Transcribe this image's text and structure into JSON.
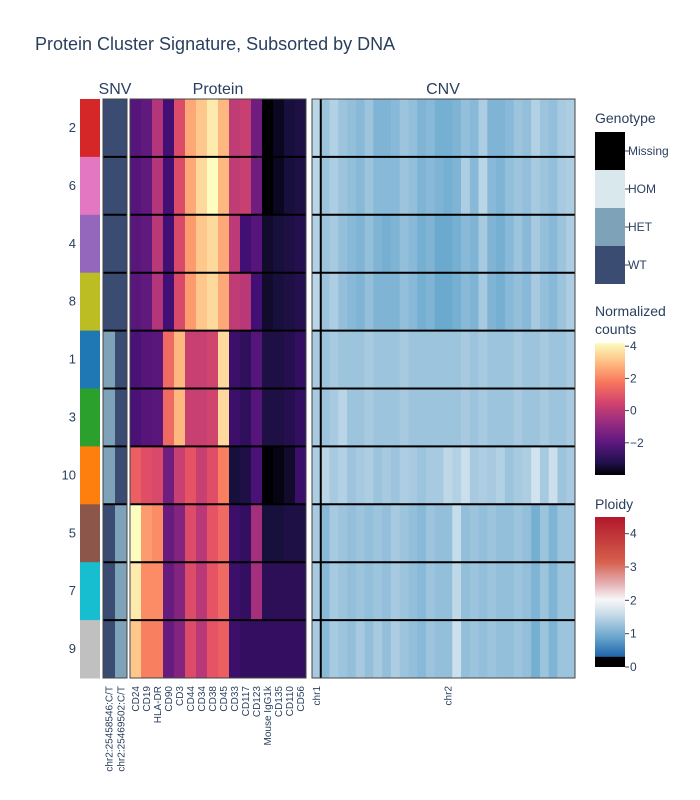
{
  "chart_data": {
    "type": "heatmap",
    "title": "Protein Cluster Signature, Subsorted by DNA",
    "panel_titles": [
      "SNV",
      "Protein",
      "CNV"
    ],
    "clusters": [
      "2",
      "6",
      "4",
      "8",
      "1",
      "3",
      "10",
      "5",
      "7",
      "9"
    ],
    "cluster_colors": [
      "#d62728",
      "#e377c2",
      "#9467bd",
      "#bcbd22",
      "#1f77b4",
      "#2ca02c",
      "#ff7f0e",
      "#8c564b",
      "#17becf",
      "#c0c0c0"
    ],
    "snv": {
      "variants": [
        "chr2:25458546:C/T",
        "chr2:25469502:C/T"
      ],
      "genotype_codes": {
        "WT": 0,
        "HET": 1,
        "HOM": 2,
        "Missing": 3
      },
      "values": [
        [
          0,
          0
        ],
        [
          0,
          0
        ],
        [
          0,
          0
        ],
        [
          0,
          0
        ],
        [
          1,
          0
        ],
        [
          1,
          0
        ],
        [
          1,
          0
        ],
        [
          0,
          1
        ],
        [
          0,
          1
        ],
        [
          0,
          1
        ]
      ]
    },
    "protein": {
      "markers": [
        "CD24",
        "CD19",
        "HLA-DR",
        "CD90",
        "CD3",
        "CD44",
        "CD34",
        "CD38",
        "CD45",
        "CD33",
        "CD117",
        "CD123",
        "Mouse IgG1k",
        "CD135",
        "CD110",
        "CD56"
      ],
      "values": [
        [
          -1.5,
          -1.2,
          0.5,
          -2.0,
          1.5,
          3.2,
          3.6,
          4.0,
          3.4,
          0.8,
          1.0,
          -0.8,
          -4.0,
          -3.6,
          -3.2,
          -3.0
        ],
        [
          -1.5,
          -1.2,
          0.5,
          -2.0,
          1.5,
          3.2,
          3.8,
          4.2,
          3.4,
          0.8,
          1.0,
          -0.8,
          -4.0,
          -3.6,
          -3.2,
          -3.0
        ],
        [
          -1.4,
          -1.2,
          0.6,
          -2.0,
          1.4,
          3.0,
          3.6,
          3.8,
          3.2,
          0.7,
          -2.0,
          -1.5,
          -3.4,
          -3.2,
          -3.0,
          -2.8
        ],
        [
          -1.4,
          -1.2,
          0.5,
          -2.0,
          1.4,
          3.0,
          3.6,
          3.8,
          3.2,
          0.8,
          0.6,
          -2.0,
          -3.4,
          -3.2,
          -3.0,
          -2.8
        ],
        [
          -1.8,
          -1.5,
          -1.4,
          2.2,
          3.4,
          1.0,
          1.0,
          1.2,
          3.8,
          -2.2,
          -2.5,
          -1.5,
          -3.0,
          -3.0,
          -2.8,
          -2.4
        ],
        [
          -1.8,
          -1.5,
          -1.4,
          2.2,
          3.4,
          1.0,
          1.0,
          1.2,
          3.8,
          -2.2,
          -2.5,
          -1.5,
          -3.0,
          -3.0,
          -2.8,
          -2.4
        ],
        [
          2.0,
          1.6,
          1.4,
          -0.8,
          1.0,
          1.8,
          1.0,
          1.6,
          2.6,
          -3.2,
          -3.0,
          -1.8,
          -4.2,
          -3.8,
          -3.4,
          -2.2
        ],
        [
          4.2,
          3.0,
          2.8,
          -1.0,
          -0.4,
          1.5,
          0.6,
          1.8,
          2.2,
          -2.2,
          -2.4,
          0.2,
          -3.2,
          -3.2,
          -3.0,
          -3.0
        ],
        [
          4.0,
          2.8,
          2.8,
          -1.0,
          -0.4,
          1.5,
          0.6,
          1.8,
          2.2,
          -2.2,
          -2.4,
          0.2,
          -2.6,
          -2.6,
          -2.6,
          -2.6
        ],
        [
          3.6,
          2.6,
          2.6,
          -1.0,
          -0.4,
          1.5,
          0.6,
          1.8,
          2.0,
          -2.2,
          -2.4,
          -2.4,
          -2.4,
          -2.4,
          -2.4,
          -2.4
        ]
      ]
    },
    "cnv": {
      "amplicons": 30,
      "tick_labels": [
        {
          "label": "chr1",
          "col": 0
        },
        {
          "label": "chr2",
          "col": 15
        }
      ],
      "chr_boundary_after_col": 0,
      "values": [
        [
          2.3,
          1.9,
          2.2,
          1.9,
          1.8,
          1.7,
          1.9,
          1.6,
          1.6,
          1.7,
          1.9,
          1.8,
          1.6,
          1.7,
          1.5,
          1.5,
          1.6,
          1.8,
          1.7,
          2.1,
          1.6,
          1.6,
          1.7,
          1.9,
          1.8,
          2.2,
          1.9,
          1.8,
          2.0,
          2.1
        ],
        [
          2.3,
          1.9,
          2.1,
          1.9,
          1.8,
          1.7,
          1.9,
          1.7,
          1.7,
          1.7,
          1.9,
          1.8,
          1.6,
          1.7,
          1.6,
          1.5,
          1.6,
          2.1,
          1.7,
          2.3,
          1.7,
          1.6,
          1.8,
          1.9,
          1.8,
          2.0,
          1.9,
          1.8,
          2.0,
          2.1
        ],
        [
          2.2,
          1.9,
          2.0,
          1.8,
          1.7,
          1.6,
          1.8,
          1.6,
          1.5,
          1.6,
          1.8,
          1.7,
          1.5,
          1.6,
          1.4,
          1.4,
          1.5,
          1.7,
          1.6,
          2.0,
          1.6,
          1.5,
          1.7,
          1.9,
          1.7,
          2.0,
          1.8,
          1.7,
          1.9,
          2.1
        ],
        [
          2.3,
          1.9,
          2.1,
          1.8,
          1.7,
          1.6,
          1.8,
          1.6,
          1.6,
          1.6,
          1.8,
          1.7,
          1.5,
          1.6,
          1.4,
          1.4,
          1.5,
          1.7,
          1.6,
          2.0,
          1.6,
          1.5,
          1.7,
          1.8,
          1.7,
          2.0,
          1.8,
          1.7,
          1.9,
          2.1
        ],
        [
          2.0,
          1.9,
          2.0,
          1.9,
          1.9,
          1.9,
          2.0,
          1.9,
          1.9,
          1.9,
          2.0,
          1.9,
          1.9,
          1.9,
          1.9,
          1.9,
          1.9,
          2.0,
          1.9,
          2.0,
          1.9,
          1.9,
          1.9,
          2.0,
          1.9,
          1.9,
          2.0,
          1.9,
          1.9,
          2.0
        ],
        [
          2.0,
          1.9,
          2.0,
          2.3,
          1.9,
          1.9,
          2.0,
          1.9,
          1.9,
          1.9,
          2.0,
          1.9,
          1.9,
          1.9,
          1.9,
          1.9,
          1.9,
          2.0,
          1.9,
          2.0,
          1.9,
          1.9,
          1.9,
          2.0,
          1.9,
          1.9,
          2.0,
          1.9,
          1.9,
          2.0
        ],
        [
          2.1,
          2.3,
          2.0,
          2.2,
          1.9,
          2.0,
          2.1,
          1.9,
          2.0,
          1.9,
          2.1,
          2.0,
          1.9,
          2.0,
          2.0,
          2.4,
          2.2,
          2.6,
          2.0,
          2.1,
          2.0,
          2.2,
          1.9,
          2.0,
          2.1,
          2.7,
          2.0,
          2.6,
          1.9,
          2.0
        ],
        [
          2.0,
          1.7,
          2.0,
          1.9,
          1.8,
          1.9,
          1.8,
          1.9,
          1.8,
          2.0,
          1.9,
          1.8,
          1.7,
          1.9,
          1.8,
          1.8,
          2.5,
          1.8,
          1.9,
          1.8,
          1.9,
          1.8,
          1.8,
          1.9,
          1.8,
          1.5,
          1.9,
          1.6,
          1.9,
          1.9
        ],
        [
          2.0,
          1.7,
          2.0,
          1.9,
          1.8,
          1.9,
          1.8,
          1.9,
          1.8,
          2.0,
          1.9,
          1.8,
          1.7,
          1.9,
          1.8,
          1.8,
          2.4,
          1.8,
          1.9,
          1.8,
          1.9,
          1.8,
          1.8,
          1.9,
          1.8,
          1.6,
          1.9,
          1.6,
          1.9,
          1.9
        ],
        [
          2.0,
          1.7,
          2.0,
          1.9,
          1.8,
          2.0,
          1.8,
          2.0,
          1.8,
          2.1,
          1.9,
          1.8,
          1.7,
          1.9,
          1.8,
          1.8,
          2.6,
          1.8,
          1.9,
          1.8,
          1.9,
          1.8,
          1.8,
          1.9,
          1.8,
          1.5,
          1.9,
          1.6,
          1.9,
          1.9
        ]
      ]
    },
    "legends": {
      "genotype": {
        "title": "Genotype",
        "labels": [
          "Missing",
          "HOM",
          "HET",
          "WT"
        ],
        "colors": [
          "#000000",
          "#d9e8ec",
          "#7ea3b8",
          "#3a4c72"
        ]
      },
      "protein": {
        "title": "Normalized counts",
        "title_lines": [
          "Normalized",
          "counts"
        ],
        "range": [
          -4,
          4.2
        ],
        "ticks": [
          4,
          2,
          0,
          -2
        ],
        "tick_labels": [
          "4",
          "2",
          "0",
          "−2"
        ]
      },
      "ploidy": {
        "title": "Ploidy",
        "range": [
          0,
          4.5
        ],
        "ticks": [
          4,
          3,
          2,
          1,
          0
        ],
        "tick_labels": [
          "4",
          "3",
          "2",
          "1",
          "0"
        ]
      }
    },
    "colors": {
      "cell_border": "#000000",
      "text": "#2a3f5f"
    }
  }
}
